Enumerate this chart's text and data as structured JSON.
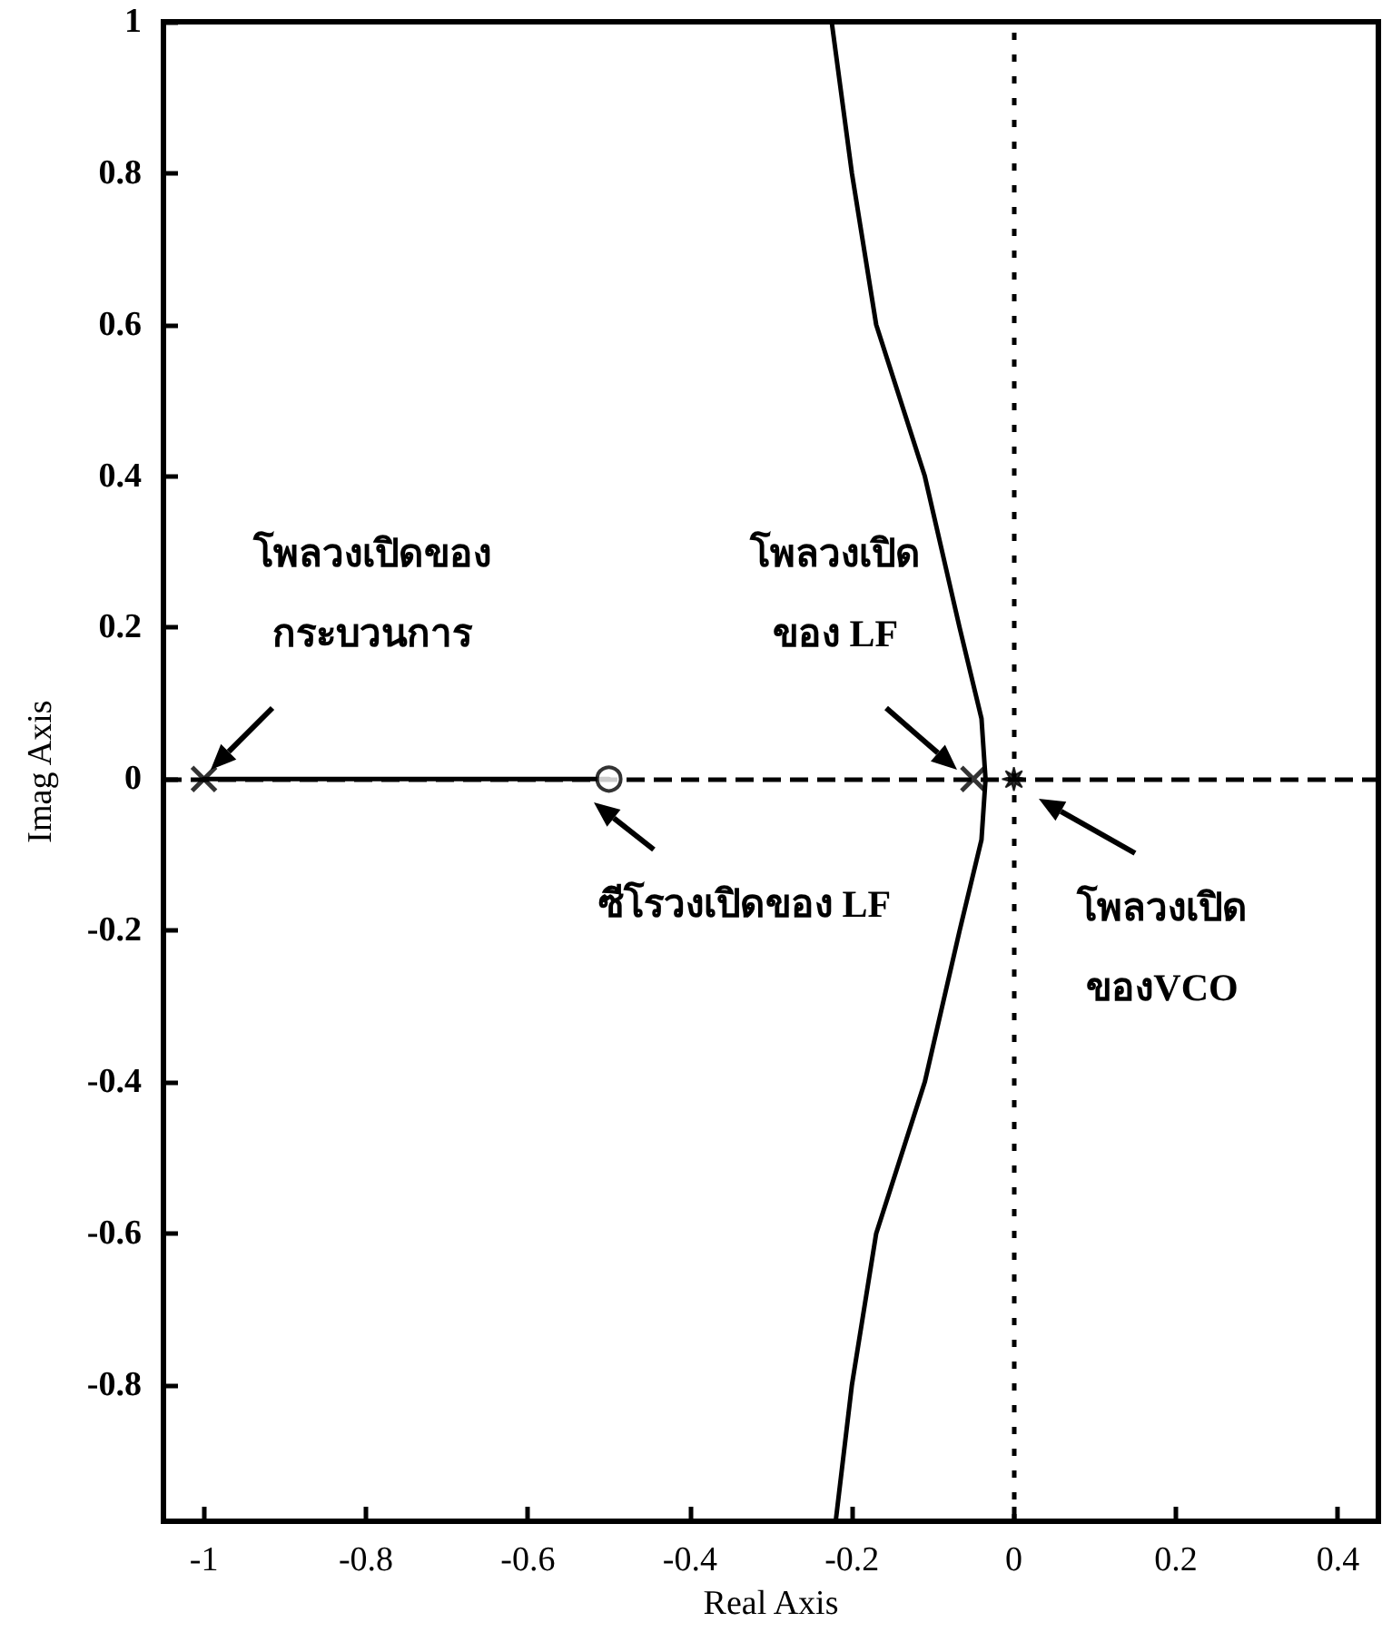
{
  "chart_data": {
    "type": "scatter",
    "xlabel": "Real Axis",
    "ylabel": "Imag Axis",
    "xlim": [
      -1.05,
      0.45
    ],
    "xticks": [
      -1,
      -0.8,
      -0.6,
      -0.4,
      -0.2,
      0,
      0.2,
      0.4
    ],
    "ylim": [
      -0.98,
      1
    ],
    "yticks": [
      -0.8,
      -0.6,
      -0.4,
      -0.2,
      0,
      0.2,
      0.4,
      0.6,
      0.8,
      1
    ],
    "grid": false,
    "series": [
      {
        "type": "line",
        "color": "#000000",
        "marker": "none",
        "line_style": "solid",
        "x": [
          -0.225,
          -0.2,
          -0.17,
          -0.11,
          -0.067,
          -0.04,
          -0.035,
          -0.04,
          -0.067,
          -0.11,
          -0.17,
          -0.2,
          -0.22
        ],
        "values": [
          1,
          0.8,
          0.6,
          0.4,
          0.2,
          0.08,
          0,
          -0.08,
          -0.2,
          -0.4,
          -0.6,
          -0.8,
          -0.98
        ]
      },
      {
        "type": "line",
        "color": "#000000",
        "marker": "none",
        "line_style": "solid",
        "x": [
          -1,
          -0.5
        ],
        "values": [
          0,
          0
        ]
      },
      {
        "type": "scatter",
        "color": "#000000",
        "marker": "cross",
        "x": [
          -1,
          -0.05
        ],
        "values": [
          0,
          0
        ]
      },
      {
        "type": "scatter",
        "color": "#000000",
        "marker": "circle",
        "x": [
          -0.5
        ],
        "values": [
          0
        ]
      },
      {
        "type": "scatter",
        "color": "#000000",
        "marker": "star",
        "x": [
          0
        ],
        "values": [
          0
        ]
      }
    ],
    "ref_lines": [
      {
        "axis": "y",
        "value": 0,
        "line_style": "dashed",
        "color": "#000000"
      },
      {
        "axis": "x",
        "value": 0,
        "line_style": "dotted",
        "color": "#000000"
      }
    ],
    "annotations": [
      "โพลวงเปิดของ\nกระบวนการ",
      "ซีโรวงเปิดของ LF",
      "โพลวงเปิด\nของ LF",
      "โพลวงเปิด\nของVCO"
    ]
  }
}
